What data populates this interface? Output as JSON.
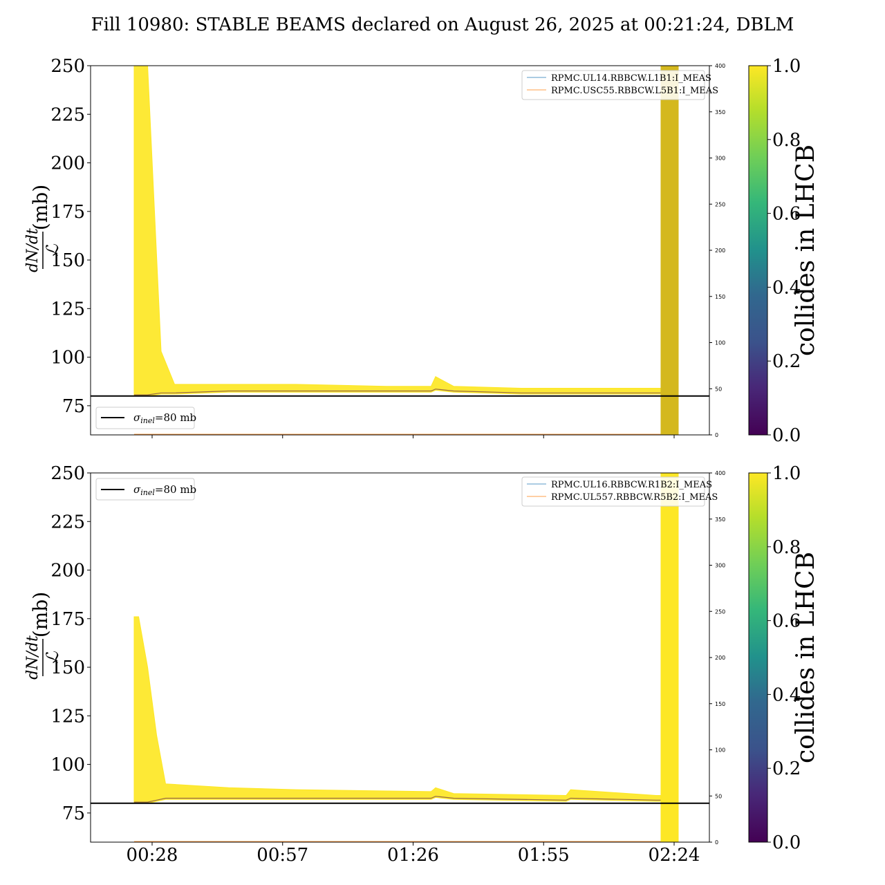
{
  "title": "Fill 10980: STABLE BEAMS declared on August 26, 2025 at 00:21:24, DBLM",
  "ylabel_num": "dN/dt",
  "ylabel_den": "ℒ",
  "ylabel_unit": "(mb)",
  "colorbar_label": "collides in LHCB",
  "colorbar_ticks": [
    "0.0",
    "0.2",
    "0.4",
    "0.6",
    "0.8",
    "1.0"
  ],
  "sigma_label": "σ",
  "sigma_sub": "inel",
  "sigma_value": "=80 mb",
  "colors": {
    "high": "#fde725",
    "low": "#440154",
    "mid": "#21918c",
    "ref_line": "#000000",
    "rpmc_b1": "#1f77b4",
    "rpmc_b2": "#ff7f0e"
  },
  "chart_data": [
    {
      "type": "line",
      "name": "top",
      "ylim": [
        60,
        250
      ],
      "yticks": [
        "75",
        "100",
        "125",
        "150",
        "175",
        "200",
        "225",
        "250"
      ],
      "right_ylim": [
        0,
        400
      ],
      "right_yticks": [
        "0",
        "50",
        "100",
        "150",
        "200",
        "250",
        "300",
        "350",
        "400"
      ],
      "reference_line": 80,
      "legend_entries": [
        "RPMC.UL14.RBBCW.L1B1:I_MEAS",
        "RPMC.USC55.RBBCW.L5B1:I_MEAS"
      ],
      "legend_position": "upper right",
      "sigma_legend_position": "lower left",
      "envelope_x": [
        "00:24",
        "00:25",
        "00:27",
        "00:30",
        "00:33",
        "00:45",
        "01:00",
        "01:20",
        "01:30",
        "01:31",
        "01:35",
        "01:50",
        "02:00",
        "02:20",
        "02:21"
      ],
      "envelope_upper": [
        250,
        250,
        250,
        103,
        86,
        86,
        86,
        85,
        85,
        90,
        85,
        84,
        84,
        84,
        84
      ],
      "envelope_lower": [
        80,
        80,
        80,
        81,
        81,
        82,
        82,
        82,
        82,
        83,
        82,
        81,
        81,
        81,
        81
      ],
      "dump_band_x": [
        "02:21",
        "02:25"
      ]
    },
    {
      "type": "line",
      "name": "bottom",
      "ylim": [
        60,
        250
      ],
      "yticks": [
        "75",
        "100",
        "125",
        "150",
        "175",
        "200",
        "225",
        "250"
      ],
      "xticks": [
        "00:28",
        "00:57",
        "01:26",
        "01:55",
        "02:24"
      ],
      "right_ylim": [
        0,
        400
      ],
      "right_yticks": [
        "0",
        "50",
        "100",
        "150",
        "200",
        "250",
        "300",
        "350",
        "400"
      ],
      "reference_line": 80,
      "legend_entries": [
        "RPMC.UL16.RBBCW.R1B2:I_MEAS",
        "RPMC.UL557.RBBCW.R5B2:I_MEAS"
      ],
      "legend_position": "upper right",
      "sigma_legend_position": "upper left",
      "envelope_x": [
        "00:24",
        "00:25",
        "00:27",
        "00:29",
        "00:31",
        "00:45",
        "01:00",
        "01:30",
        "01:31",
        "01:35",
        "02:00",
        "02:01",
        "02:20",
        "02:21"
      ],
      "envelope_upper": [
        176,
        176,
        150,
        115,
        90,
        88,
        87,
        86,
        88,
        85,
        84,
        87,
        84,
        84
      ],
      "envelope_lower": [
        80,
        80,
        80,
        81,
        82,
        82,
        82,
        82,
        83,
        82,
        81,
        82,
        81,
        81
      ],
      "dump_band_x": [
        "02:21",
        "02:25"
      ]
    }
  ]
}
